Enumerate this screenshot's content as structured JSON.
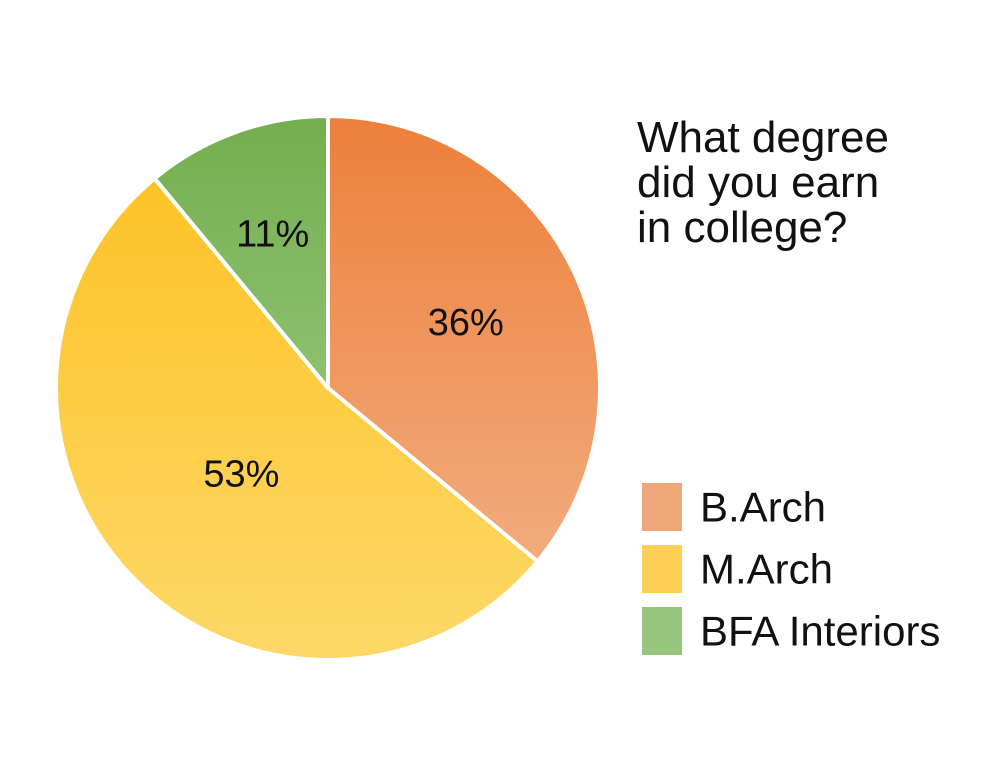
{
  "chart_data": {
    "type": "pie",
    "title": "What degree did you earn in college?",
    "title_lines": [
      "What degree",
      "did you earn",
      "in college?"
    ],
    "categories": [
      "B.Arch",
      "M.Arch",
      "BFA Interiors"
    ],
    "values": [
      36,
      53,
      11
    ],
    "labels": [
      "36%",
      "53%",
      "11%"
    ],
    "legend_position": "bottom-right",
    "colors": {
      "B.Arch": {
        "top": "#ED7F3B",
        "bottom": "#F3B58B",
        "legend": "#F0A87A"
      },
      "M.Arch": {
        "top": "#FDC01E",
        "bottom": "#FDD868",
        "legend": "#FDCF55"
      },
      "BFA Interiors": {
        "top": "#74AE4E",
        "bottom": "#A9D295",
        "legend": "#98C57D"
      }
    }
  }
}
